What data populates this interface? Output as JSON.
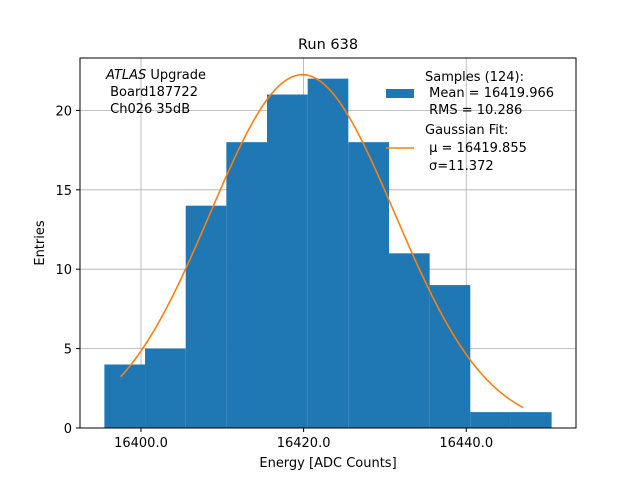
{
  "chart_data": {
    "type": "bar",
    "title": "Run 638",
    "xlabel": "Energy [ADC Counts]",
    "ylabel": "Entries",
    "xlim": [
      16392.5,
      16453.5
    ],
    "ylim": [
      0,
      23.3
    ],
    "xticks": [
      16400.0,
      16420.0,
      16440.0
    ],
    "xtick_labels": [
      "16400.0",
      "16420.0",
      "16440.0"
    ],
    "yticks": [
      0,
      5,
      10,
      15,
      20
    ],
    "grid": true,
    "bin_edges": [
      16395.5,
      16400.5,
      16405.5,
      16410.5,
      16415.5,
      16420.5,
      16425.5,
      16430.5,
      16435.5,
      16440.5,
      16445.5,
      16450.5
    ],
    "series": [
      {
        "type": "histogram",
        "values": [
          4,
          5,
          14,
          18,
          21,
          22,
          18,
          11,
          9,
          1,
          1
        ],
        "color": "#1f77b4"
      },
      {
        "type": "line",
        "mu": 16419.855,
        "sigma": 11.372,
        "amplitude": 22.25,
        "x_range": [
          16397.5,
          16447.0
        ],
        "color": "#ff7f0e"
      }
    ],
    "annotation": {
      "atlas": "ATLAS",
      "upgrade": " Upgrade",
      "line2": " Board187722",
      "line3": " Ch026 35dB"
    },
    "legend": {
      "placement": "top-right",
      "hist_lines": [
        "Samples (124):",
        " Mean = 16419.966",
        " RMS = 10.286"
      ],
      "fit_lines": [
        "Gaussian Fit:",
        " μ = 16419.855",
        "σ=11.372"
      ]
    }
  }
}
